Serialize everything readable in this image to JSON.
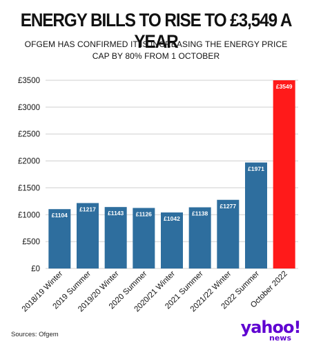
{
  "header": {
    "title": "ENERGY BILLS TO RISE TO £3,549 A YEAR",
    "subtitle": "OFGEM HAS CONFIRMED IT IS INCREASING THE ENERGY PRICE CAP BY 80% FROM 1 OCTOBER"
  },
  "footer": {
    "source": "Sources: Ofgem",
    "logo_text": "yahoo!",
    "logo_sub": "news"
  },
  "colors": {
    "bar": "#2e6e9e",
    "highlight": "#ff1a1a",
    "grid": "#cfcfcf",
    "brand": "#5f01d1"
  },
  "chart_data": {
    "type": "bar",
    "categories": [
      "2018/19 Winter",
      "2019 Summer",
      "2019/20 Winter",
      "2020 Summer",
      "2020/21 Winter",
      "2021 Summer",
      "2021/22 Winter",
      "2022 Summer",
      "October 2022"
    ],
    "values": [
      1104,
      1217,
      1143,
      1126,
      1042,
      1138,
      1277,
      1971,
      3549
    ],
    "data_labels": [
      "£1104",
      "£1217",
      "£1143",
      "£1126",
      "£1042",
      "£1138",
      "£1277",
      "£1971",
      "£3549"
    ],
    "highlight_index": 8,
    "ylim": [
      0,
      3500
    ],
    "yticks": [
      0,
      500,
      1000,
      1500,
      2000,
      2500,
      3000,
      3500
    ],
    "ytick_labels": [
      "£0",
      "£500",
      "£1000",
      "£1500",
      "£2000",
      "£2500",
      "£3000",
      "£3500"
    ],
    "grid": true
  }
}
